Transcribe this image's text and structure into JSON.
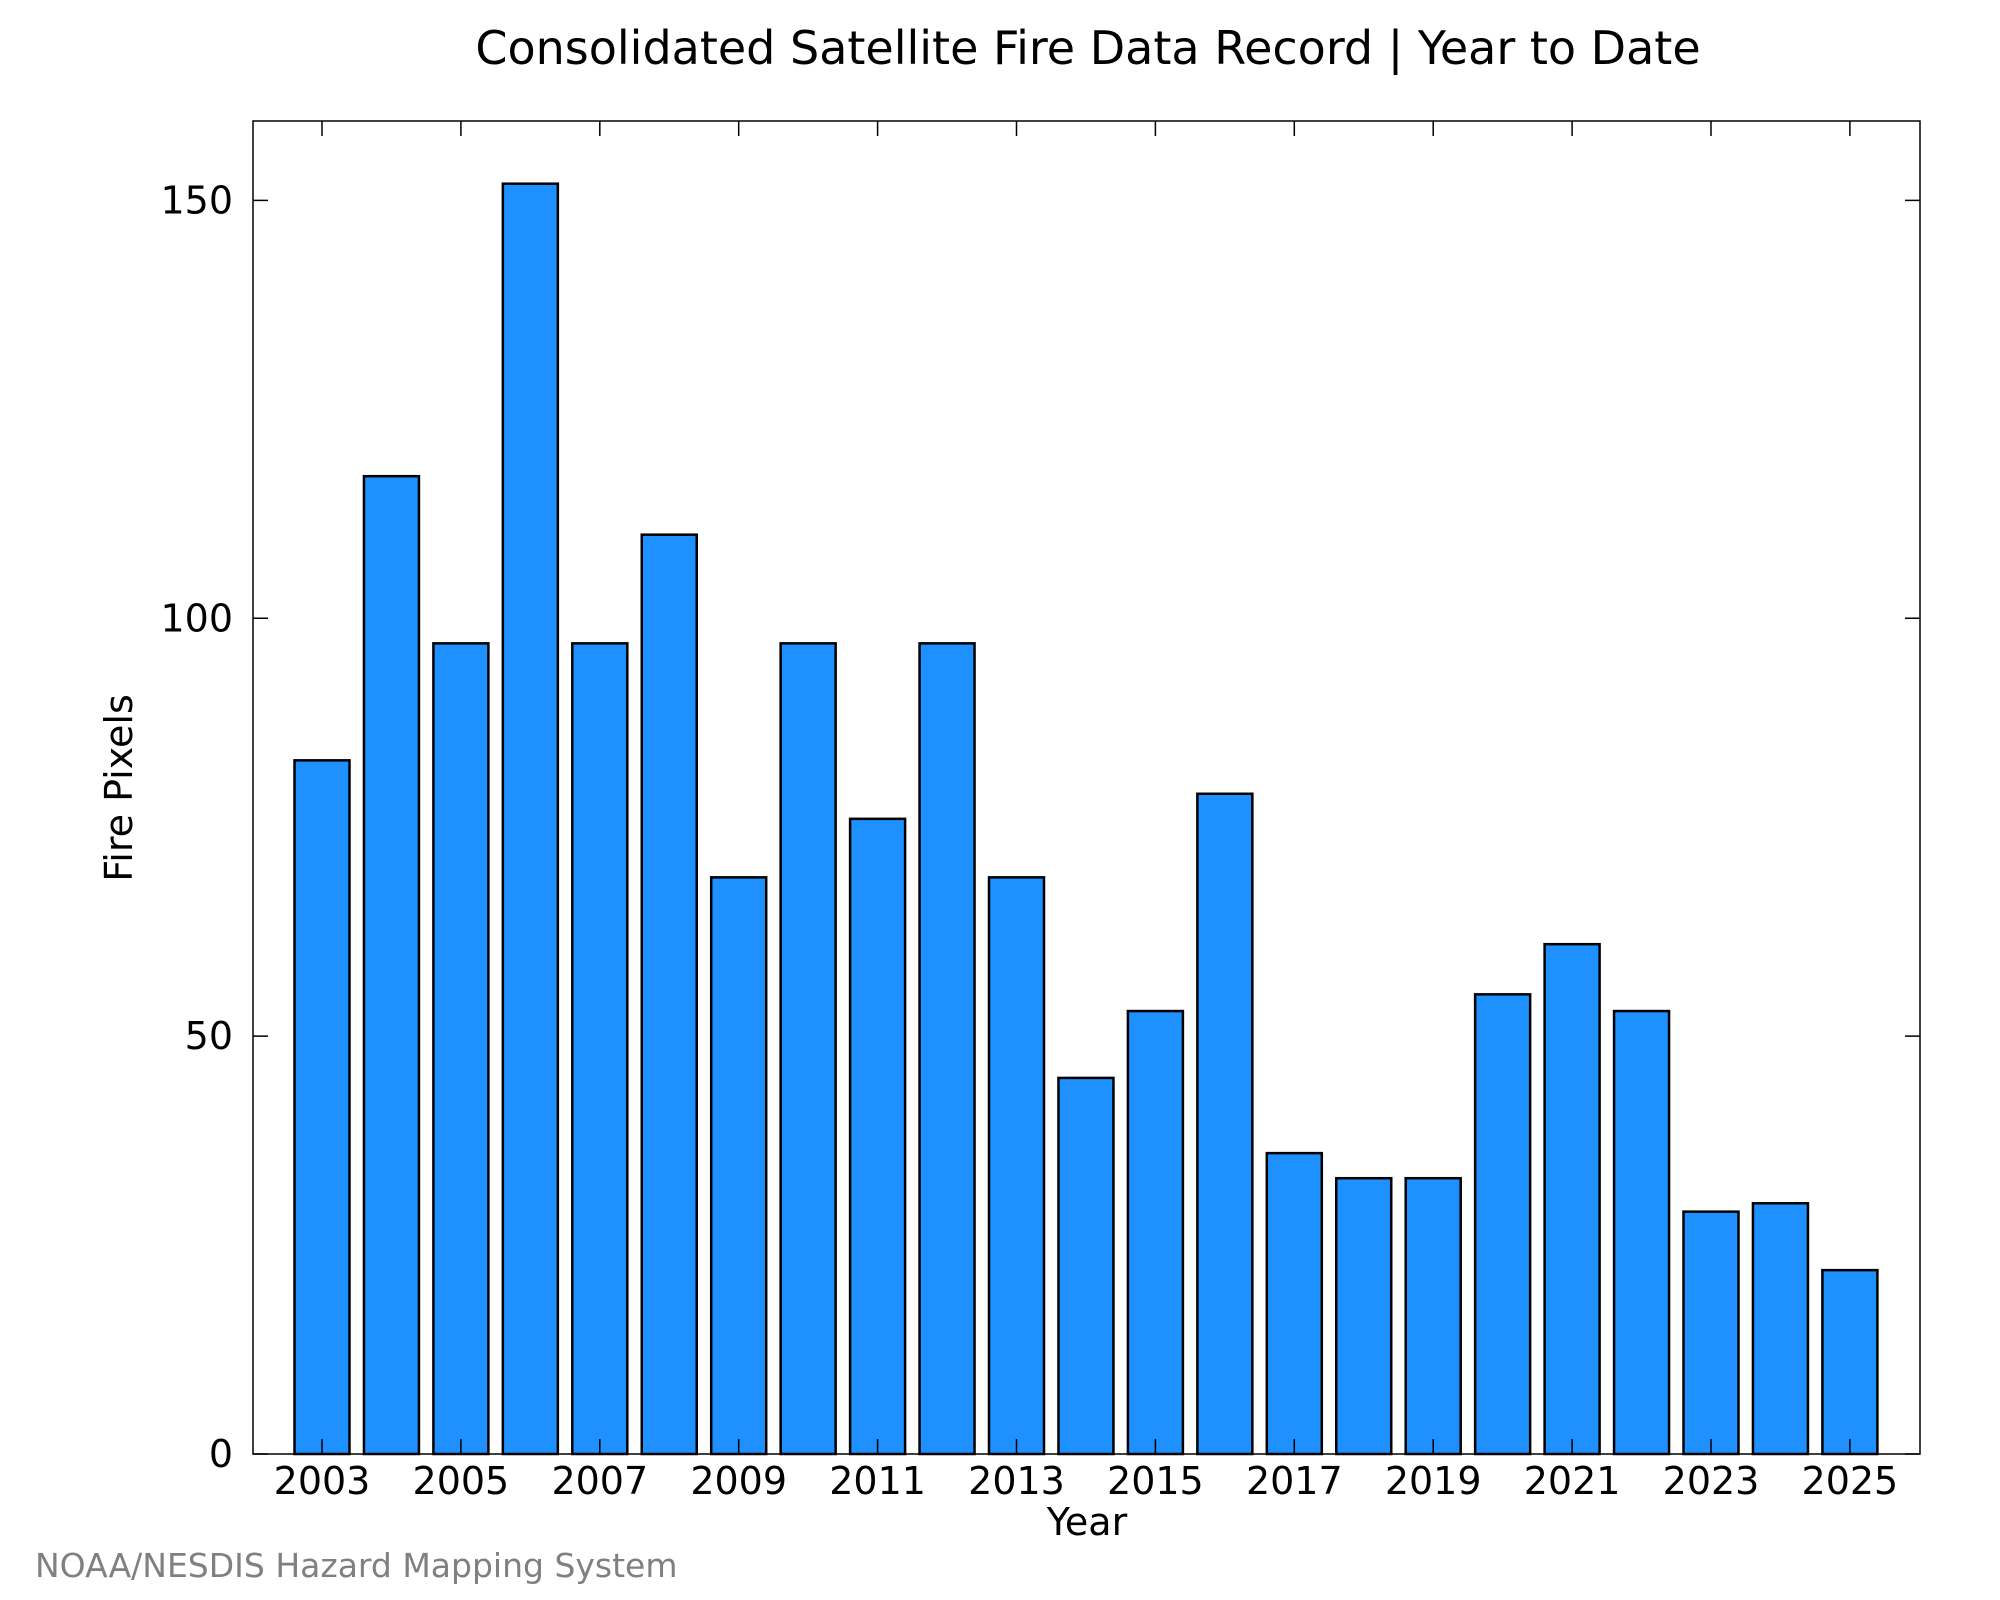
{
  "chart_data": {
    "type": "bar",
    "title": "Consolidated Satellite Fire Data Record | Year to Date",
    "xlabel": "Year",
    "ylabel": "Fire Pixels",
    "categories": [
      "2003",
      "2004",
      "2005",
      "2006",
      "2007",
      "2008",
      "2009",
      "2010",
      "2011",
      "2012",
      "2013",
      "2014",
      "2015",
      "2016",
      "2017",
      "2018",
      "2019",
      "2020",
      "2021",
      "2022",
      "2023",
      "2024",
      "2025"
    ],
    "values": [
      83,
      117,
      97,
      152,
      97,
      110,
      69,
      97,
      76,
      97,
      69,
      45,
      53,
      79,
      36,
      33,
      33,
      55,
      61,
      53,
      29,
      30,
      22
    ],
    "x_tick_labels": [
      "2003",
      "2005",
      "2007",
      "2009",
      "2011",
      "2013",
      "2015",
      "2017",
      "2019",
      "2021",
      "2023",
      "2025"
    ],
    "y_ticks": [
      0,
      50,
      100,
      150
    ],
    "ylim": [
      0,
      159.5
    ],
    "grid": false,
    "legend": "none",
    "bar_color": "#1e90ff",
    "bar_edge_color": "#000000"
  },
  "footer": {
    "credit": "NOAA/NESDIS Hazard Mapping System",
    "credit_color": "#808080"
  }
}
